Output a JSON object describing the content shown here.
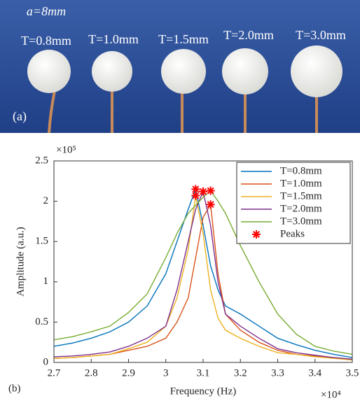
{
  "photo": {
    "labels": [
      "a=8mm",
      "T=0.8mm",
      "T=1.0mm",
      "T=1.5mm",
      "T=2.0mm",
      "T=3.0mm"
    ],
    "panel_label": "(a)"
  },
  "chart_data": {
    "type": "line",
    "panel_label": "(b)",
    "xlabel": "Frequency (Hz)",
    "ylabel": "Amplitude (a.u.)",
    "x_multiplier": "×10⁴",
    "y_multiplier": "×10⁵",
    "x": [
      2.7,
      2.75,
      2.8,
      2.85,
      2.9,
      2.95,
      3.0,
      3.03,
      3.06,
      3.08,
      3.1,
      3.12,
      3.14,
      3.16,
      3.2,
      3.25,
      3.3,
      3.35,
      3.4,
      3.45,
      3.5
    ],
    "series": [
      {
        "name": "T=0.8mm",
        "color": "#0072bd",
        "values": [
          0.2,
          0.24,
          0.3,
          0.38,
          0.5,
          0.7,
          1.1,
          1.5,
          1.9,
          2.15,
          1.7,
          1.2,
          0.9,
          0.7,
          0.6,
          0.45,
          0.3,
          0.22,
          0.15,
          0.1,
          0.06
        ]
      },
      {
        "name": "T=1.0mm",
        "color": "#d95319",
        "values": [
          0.05,
          0.06,
          0.08,
          0.1,
          0.15,
          0.2,
          0.3,
          0.5,
          0.8,
          1.3,
          1.8,
          1.96,
          1.1,
          0.6,
          0.4,
          0.25,
          0.15,
          0.1,
          0.08,
          0.06,
          0.04
        ]
      },
      {
        "name": "T=1.5mm",
        "color": "#edb120",
        "values": [
          0.05,
          0.06,
          0.08,
          0.1,
          0.17,
          0.25,
          0.45,
          0.8,
          1.4,
          2.07,
          1.6,
          0.9,
          0.55,
          0.4,
          0.3,
          0.2,
          0.12,
          0.1,
          0.07,
          0.05,
          0.03
        ]
      },
      {
        "name": "T=2.0mm",
        "color": "#7e2f8e",
        "values": [
          0.07,
          0.08,
          0.1,
          0.13,
          0.2,
          0.3,
          0.45,
          0.9,
          1.5,
          1.9,
          2.12,
          1.7,
          1.0,
          0.6,
          0.45,
          0.3,
          0.17,
          0.12,
          0.09,
          0.06,
          0.04
        ]
      },
      {
        "name": "T=3.0mm",
        "color": "#77ac30",
        "values": [
          0.28,
          0.32,
          0.38,
          0.45,
          0.62,
          0.85,
          1.3,
          1.6,
          1.85,
          1.95,
          2.05,
          2.13,
          2.0,
          1.85,
          1.45,
          1.0,
          0.6,
          0.35,
          0.2,
          0.14,
          0.1
        ]
      }
    ],
    "peaks": {
      "name": "Peaks",
      "color": "#ff0000",
      "x": [
        3.08,
        3.12,
        3.08,
        3.1,
        3.12
      ],
      "values": [
        2.15,
        1.96,
        2.07,
        2.12,
        2.13
      ]
    },
    "xlim": [
      2.7,
      3.5
    ],
    "ylim": [
      0,
      2.5
    ],
    "xticks": [
      2.7,
      2.8,
      2.9,
      3,
      3.1,
      3.2,
      3.3,
      3.4,
      3.5
    ],
    "yticks": [
      0,
      0.5,
      1,
      1.5,
      2,
      2.5
    ],
    "legend": "upper right"
  }
}
